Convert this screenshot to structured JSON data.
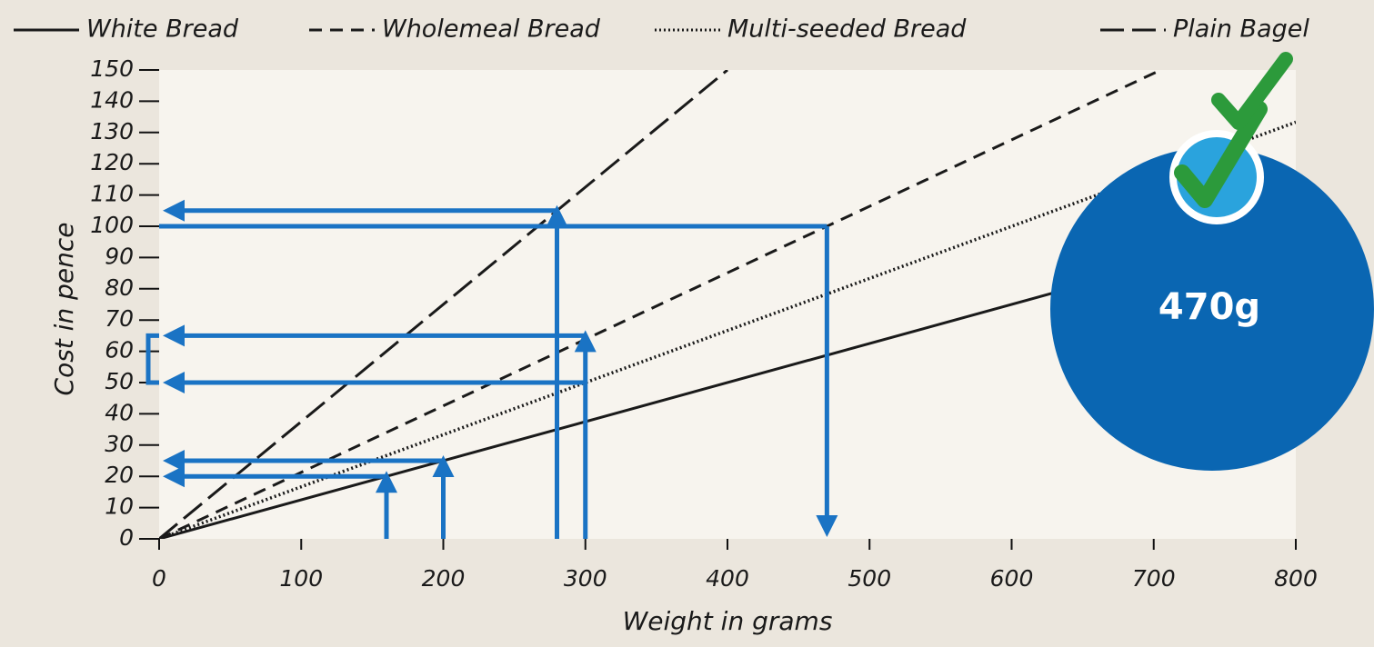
{
  "chart_data": {
    "type": "line",
    "x_label": "Weight in grams",
    "y_label": "Cost in pence",
    "xlim": [
      0,
      800
    ],
    "ylim": [
      0,
      150
    ],
    "xticks": [
      0,
      100,
      200,
      300,
      400,
      500,
      600,
      700,
      800
    ],
    "yticks": [
      0,
      10,
      20,
      30,
      40,
      50,
      60,
      70,
      80,
      90,
      100,
      110,
      120,
      130,
      140,
      150
    ],
    "grid": true,
    "legend": "top",
    "series": [
      {
        "name": "White Bread",
        "color": "#1a1a1a",
        "dash": "none",
        "x": [
          0,
          800
        ],
        "values": [
          0,
          100
        ]
      },
      {
        "name": "Wholemeal Bread",
        "color": "#1a1a1a",
        "dash": "14 9",
        "x": [
          0,
          705
        ],
        "values": [
          0,
          150
        ]
      },
      {
        "name": "Multi-seeded Bread",
        "color": "#1a1a1a",
        "dash": "2 3",
        "x": [
          0,
          800
        ],
        "values": [
          0,
          133.3
        ]
      },
      {
        "name": "Plain Bagel",
        "color": "#1a1a1a",
        "dash": "26 9",
        "x": [
          0,
          400
        ],
        "values": [
          0,
          150
        ]
      }
    ],
    "readings_color": "#1a73c4",
    "readings": [
      {
        "x": 160,
        "y": 20,
        "dir": "up-left"
      },
      {
        "x": 200,
        "y": 25,
        "dir": "up-left"
      },
      {
        "x": 280,
        "y": 105,
        "dir": "up-left"
      },
      {
        "x": 300,
        "y": 65,
        "dir": "up-left"
      },
      {
        "x": 300,
        "y": 50,
        "dir": "left"
      },
      {
        "x": 470,
        "y": 100,
        "dir": "right-down"
      }
    ],
    "badge": "470g"
  }
}
